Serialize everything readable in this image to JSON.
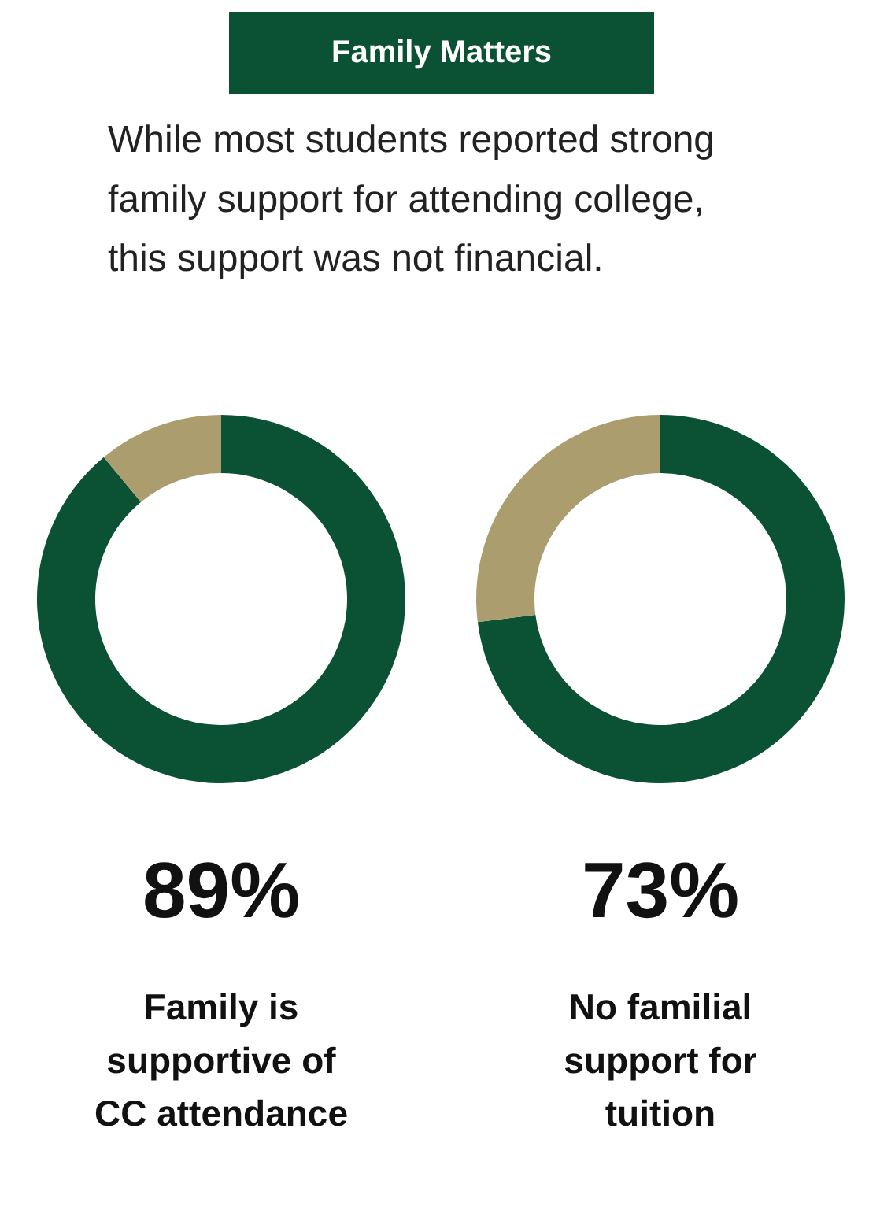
{
  "chart_data": [
    {
      "type": "other",
      "title": "Family Matters",
      "subtitle": "While most students reported strong family support for attending college, this support was not financial."
    },
    {
      "type": "donut",
      "title": "Family is supportive of CC attendance",
      "categories": [
        null,
        null
      ],
      "values": [
        89,
        11
      ],
      "colors": [
        "#0b5234",
        "#ac9d6e"
      ],
      "value_labels": [
        "89%",
        null
      ]
    },
    {
      "type": "donut",
      "title": "No familial support for tuition",
      "categories": [
        null,
        null
      ],
      "values": [
        73,
        27
      ],
      "colors": [
        "#0b5234",
        "#ac9d6e"
      ],
      "value_labels": [
        "73%",
        null
      ]
    }
  ]
}
